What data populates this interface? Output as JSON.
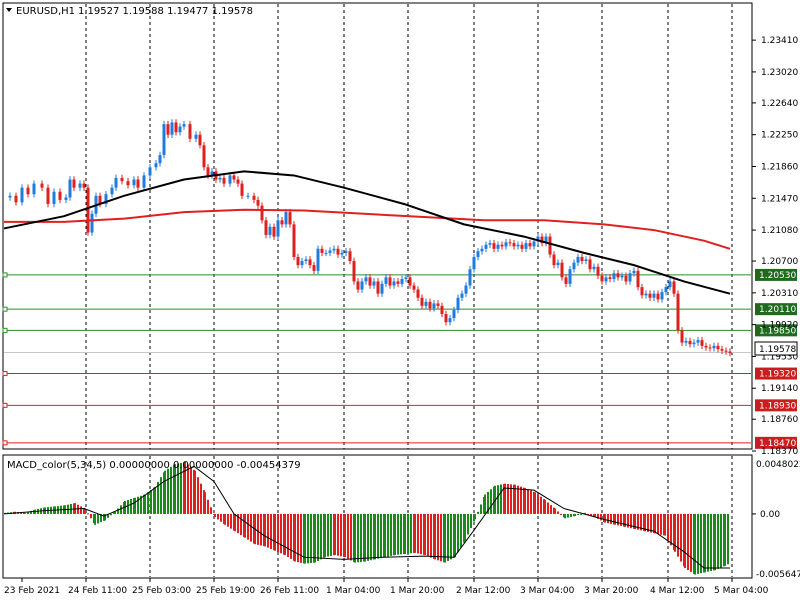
{
  "header": {
    "symbol": "EURUSD,H1",
    "ohlc": "1.19527 1.19588 1.19477 1.19578"
  },
  "macd": {
    "label": "MACD_color(5,34,5) 0.00000000 0.00000000 -0.00454379",
    "ticks": [
      "0.0048022",
      "0.00",
      "-0.005647"
    ]
  },
  "colors": {
    "bull": "#1e7be0",
    "bear": "#e0201e",
    "ma_slow": "#e0201e",
    "ma_fast": "#000000",
    "macd_up": "#1a8a1a",
    "macd_down": "#e0201e",
    "support_line": "#2e8b2e",
    "resist_line": "#e0201e"
  },
  "chart_data": [
    {
      "type": "candlestick",
      "title": "EURUSD,H1",
      "ylim": [
        1.1837,
        1.2362
      ],
      "price_ticks": [
        "1.23410",
        "1.23020",
        "1.22640",
        "1.22250",
        "1.21860",
        "1.21470",
        "1.21080",
        "1.20700",
        "1.20310",
        "1.19920",
        "1.19530",
        "1.19140",
        "1.18760",
        "1.18370"
      ],
      "x_labels": [
        "23 Feb 2021",
        "24 Feb 11:00",
        "25 Feb 03:00",
        "25 Feb 19:00",
        "26 Feb 11:00",
        "1 Mar 04:00",
        "1 Mar 20:00",
        "2 Mar 12:00",
        "3 Mar 04:00",
        "3 Mar 20:00",
        "4 Mar 12:00",
        "5 Mar 04:00"
      ],
      "current_price": "1.19578",
      "horizontal_levels": [
        {
          "label": "1.20530",
          "value": 1.2053,
          "kind": "green"
        },
        {
          "label": "1.20110",
          "value": 1.2011,
          "kind": "green"
        },
        {
          "label": "1.19850",
          "value": 1.1985,
          "kind": "green"
        },
        {
          "label": "1.19320",
          "value": 1.1932,
          "kind": "red"
        },
        {
          "label": "1.18930",
          "value": 1.1893,
          "kind": "red"
        },
        {
          "label": "1.18470",
          "value": 1.1847,
          "kind": "red"
        }
      ],
      "close_path": [
        [
          0,
          1.2148
        ],
        [
          6,
          1.215
        ],
        [
          12,
          1.2142
        ],
        [
          18,
          1.216
        ],
        [
          24,
          1.2152
        ],
        [
          30,
          1.2165
        ],
        [
          38,
          1.216
        ],
        [
          44,
          1.214
        ],
        [
          50,
          1.2155
        ],
        [
          56,
          1.2145
        ],
        [
          62,
          1.2148
        ],
        [
          66,
          1.217
        ],
        [
          70,
          1.216
        ],
        [
          76,
          1.2165
        ],
        [
          80,
          1.216
        ],
        [
          84,
          1.2105
        ],
        [
          88,
          1.2128
        ],
        [
          92,
          1.215
        ],
        [
          96,
          1.214
        ],
        [
          102,
          1.2152
        ],
        [
          108,
          1.216
        ],
        [
          112,
          1.2172
        ],
        [
          118,
          1.2168
        ],
        [
          124,
          1.2163
        ],
        [
          130,
          1.217
        ],
        [
          134,
          1.216
        ],
        [
          140,
          1.2175
        ],
        [
          146,
          1.2185
        ],
        [
          152,
          1.219
        ],
        [
          156,
          1.22
        ],
        [
          160,
          1.2238
        ],
        [
          164,
          1.2225
        ],
        [
          168,
          1.224
        ],
        [
          172,
          1.2228
        ],
        [
          176,
          1.2235
        ],
        [
          180,
          1.2238
        ],
        [
          186,
          1.222
        ],
        [
          192,
          1.2225
        ],
        [
          196,
          1.2212
        ],
        [
          200,
          1.2185
        ],
        [
          204,
          1.2175
        ],
        [
          208,
          1.218
        ],
        [
          212,
          1.217
        ],
        [
          216,
          1.2172
        ],
        [
          220,
          1.2165
        ],
        [
          226,
          1.2175
        ],
        [
          230,
          1.217
        ],
        [
          234,
          1.2165
        ],
        [
          238,
          1.215
        ],
        [
          244,
          1.215
        ],
        [
          250,
          1.2145
        ],
        [
          254,
          1.2138
        ],
        [
          258,
          1.212
        ],
        [
          262,
          1.2102
        ],
        [
          266,
          1.2112
        ],
        [
          270,
          1.21
        ],
        [
          274,
          1.212
        ],
        [
          278,
          1.2115
        ],
        [
          282,
          1.213
        ],
        [
          286,
          1.2115
        ],
        [
          290,
          1.2075
        ],
        [
          294,
          1.2065
        ],
        [
          298,
          1.207
        ],
        [
          302,
          1.2072
        ],
        [
          306,
          1.2065
        ],
        [
          310,
          1.2058
        ],
        [
          314,
          1.2085
        ],
        [
          318,
          1.208
        ],
        [
          322,
          1.208
        ],
        [
          326,
          1.2083
        ],
        [
          330,
          1.2085
        ],
        [
          334,
          1.2078
        ],
        [
          338,
          1.208
        ],
        [
          342,
          1.2082
        ],
        [
          346,
          1.207
        ],
        [
          350,
          1.2045
        ],
        [
          354,
          1.2035
        ],
        [
          358,
          1.2045
        ],
        [
          362,
          1.205
        ],
        [
          366,
          1.204
        ],
        [
          370,
          1.2045
        ],
        [
          374,
          1.203
        ],
        [
          378,
          1.2042
        ],
        [
          382,
          1.205
        ],
        [
          386,
          1.204
        ],
        [
          390,
          1.2045
        ],
        [
          394,
          1.2042
        ],
        [
          398,
          1.2048
        ],
        [
          402,
          1.205
        ],
        [
          406,
          1.204
        ],
        [
          410,
          1.2035
        ],
        [
          414,
          1.2025
        ],
        [
          418,
          1.2015
        ],
        [
          422,
          1.202
        ],
        [
          426,
          1.2012
        ],
        [
          430,
          1.2018
        ],
        [
          434,
          1.2015
        ],
        [
          438,
          1.2005
        ],
        [
          442,
          1.1995
        ],
        [
          446,
          1.2
        ],
        [
          450,
          1.201
        ],
        [
          454,
          1.2025
        ],
        [
          458,
          1.203
        ],
        [
          462,
          1.204
        ],
        [
          466,
          1.206
        ],
        [
          470,
          1.2075
        ],
        [
          474,
          1.2082
        ],
        [
          478,
          1.2085
        ],
        [
          482,
          1.209
        ],
        [
          486,
          1.2092
        ],
        [
          490,
          1.2085
        ],
        [
          494,
          1.209
        ],
        [
          498,
          1.2088
        ],
        [
          502,
          1.2093
        ],
        [
          506,
          1.2092
        ],
        [
          510,
          1.2088
        ],
        [
          514,
          1.209
        ],
        [
          518,
          1.2085
        ],
        [
          522,
          1.2092
        ],
        [
          526,
          1.2088
        ],
        [
          530,
          1.2094
        ],
        [
          534,
          1.21
        ],
        [
          538,
          1.2092
        ],
        [
          542,
          1.21
        ],
        [
          546,
          1.2078
        ],
        [
          550,
          1.2065
        ],
        [
          554,
          1.2068
        ],
        [
          558,
          1.205
        ],
        [
          562,
          1.2042
        ],
        [
          566,
          1.206
        ],
        [
          570,
          1.2068
        ],
        [
          574,
          1.2075
        ],
        [
          578,
          1.207
        ],
        [
          582,
          1.2072
        ],
        [
          586,
          1.206
        ],
        [
          590,
          1.2063
        ],
        [
          594,
          1.2052
        ],
        [
          598,
          1.2045
        ],
        [
          602,
          1.205
        ],
        [
          606,
          1.2048
        ],
        [
          610,
          1.2055
        ],
        [
          614,
          1.205
        ],
        [
          618,
          1.2052
        ],
        [
          622,
          1.2045
        ],
        [
          626,
          1.2055
        ],
        [
          630,
          1.2058
        ],
        [
          634,
          1.2038
        ],
        [
          638,
          1.2028
        ],
        [
          642,
          1.203
        ],
        [
          646,
          1.2025
        ],
        [
          650,
          1.203
        ],
        [
          654,
          1.2023
        ],
        [
          658,
          1.2032
        ],
        [
          662,
          1.2038
        ],
        [
          666,
          1.2045
        ],
        [
          670,
          1.203
        ],
        [
          674,
          1.1985
        ],
        [
          678,
          1.197
        ],
        [
          682,
          1.1972
        ],
        [
          686,
          1.1968
        ],
        [
          690,
          1.197
        ],
        [
          694,
          1.1973
        ],
        [
          698,
          1.1966
        ],
        [
          702,
          1.1964
        ],
        [
          706,
          1.1963
        ],
        [
          710,
          1.1966
        ],
        [
          714,
          1.1962
        ],
        [
          718,
          1.196
        ],
        [
          722,
          1.1959
        ],
        [
          726,
          1.1957
        ]
      ],
      "ma_fast": [
        [
          0,
          1.211
        ],
        [
          60,
          1.2125
        ],
        [
          120,
          1.215
        ],
        [
          180,
          1.217
        ],
        [
          240,
          1.218
        ],
        [
          290,
          1.2175
        ],
        [
          340,
          1.216
        ],
        [
          400,
          1.214
        ],
        [
          460,
          1.2115
        ],
        [
          520,
          1.21
        ],
        [
          580,
          1.208
        ],
        [
          630,
          1.2065
        ],
        [
          680,
          1.2045
        ],
        [
          726,
          1.203
        ]
      ],
      "ma_slow": [
        [
          0,
          1.2118
        ],
        [
          60,
          1.2118
        ],
        [
          120,
          1.2122
        ],
        [
          180,
          1.213
        ],
        [
          240,
          1.2133
        ],
        [
          300,
          1.2132
        ],
        [
          360,
          1.2128
        ],
        [
          420,
          1.2124
        ],
        [
          480,
          1.212
        ],
        [
          540,
          1.212
        ],
        [
          600,
          1.2115
        ],
        [
          650,
          1.2108
        ],
        [
          700,
          1.2095
        ],
        [
          726,
          1.2085
        ]
      ],
      "macd_hist": [
        [
          0,
          0.0001
        ],
        [
          10,
          0.0002
        ],
        [
          20,
          0.0001
        ],
        [
          30,
          0.0004
        ],
        [
          40,
          0.0006
        ],
        [
          50,
          0.0007
        ],
        [
          60,
          0.0008
        ],
        [
          70,
          0.001
        ],
        [
          80,
          0.0005
        ],
        [
          90,
          -0.001
        ],
        [
          100,
          -0.0006
        ],
        [
          110,
          0.0002
        ],
        [
          120,
          0.0012
        ],
        [
          130,
          0.0015
        ],
        [
          140,
          0.0018
        ],
        [
          150,
          0.0025
        ],
        [
          160,
          0.004
        ],
        [
          170,
          0.0046
        ],
        [
          180,
          0.0048
        ],
        [
          190,
          0.004
        ],
        [
          200,
          0.002
        ],
        [
          210,
          -0.0003
        ],
        [
          220,
          -0.001
        ],
        [
          230,
          -0.0016
        ],
        [
          240,
          -0.0022
        ],
        [
          250,
          -0.0028
        ],
        [
          260,
          -0.003
        ],
        [
          270,
          -0.0034
        ],
        [
          280,
          -0.0038
        ],
        [
          290,
          -0.0044
        ],
        [
          300,
          -0.0046
        ],
        [
          310,
          -0.0045
        ],
        [
          320,
          -0.004
        ],
        [
          330,
          -0.0038
        ],
        [
          340,
          -0.004
        ],
        [
          350,
          -0.0045
        ],
        [
          360,
          -0.0044
        ],
        [
          370,
          -0.0042
        ],
        [
          380,
          -0.004
        ],
        [
          390,
          -0.0038
        ],
        [
          400,
          -0.0037
        ],
        [
          410,
          -0.0036
        ],
        [
          420,
          -0.0038
        ],
        [
          430,
          -0.0042
        ],
        [
          440,
          -0.0045
        ],
        [
          450,
          -0.004
        ],
        [
          460,
          -0.0025
        ],
        [
          470,
          -0.0005
        ],
        [
          480,
          0.0018
        ],
        [
          490,
          0.0026
        ],
        [
          500,
          0.0028
        ],
        [
          510,
          0.0027
        ],
        [
          520,
          0.0024
        ],
        [
          530,
          0.002
        ],
        [
          540,
          0.0013
        ],
        [
          550,
          0.0005
        ],
        [
          560,
          -0.0004
        ],
        [
          570,
          -0.0002
        ],
        [
          580,
          0.0001
        ],
        [
          590,
          -0.0003
        ],
        [
          600,
          -0.0008
        ],
        [
          610,
          -0.001
        ],
        [
          620,
          -0.0012
        ],
        [
          630,
          -0.0014
        ],
        [
          640,
          -0.0016
        ],
        [
          650,
          -0.0018
        ],
        [
          660,
          -0.002
        ],
        [
          670,
          -0.0035
        ],
        [
          680,
          -0.005
        ],
        [
          690,
          -0.0056
        ],
        [
          700,
          -0.0054
        ],
        [
          710,
          -0.0052
        ],
        [
          720,
          -0.0048
        ],
        [
          726,
          -0.0045
        ]
      ],
      "macd_signal": [
        [
          0,
          0.0
        ],
        [
          40,
          0.0003
        ],
        [
          80,
          0.0005
        ],
        [
          100,
          -0.0002
        ],
        [
          130,
          0.001
        ],
        [
          160,
          0.003
        ],
        [
          190,
          0.0044
        ],
        [
          210,
          0.003
        ],
        [
          230,
          0.0
        ],
        [
          260,
          -0.002
        ],
        [
          300,
          -0.004
        ],
        [
          340,
          -0.0042
        ],
        [
          380,
          -0.004
        ],
        [
          420,
          -0.0039
        ],
        [
          450,
          -0.004
        ],
        [
          470,
          -0.0015
        ],
        [
          500,
          0.0024
        ],
        [
          530,
          0.0022
        ],
        [
          560,
          0.0005
        ],
        [
          600,
          -0.0005
        ],
        [
          650,
          -0.0016
        ],
        [
          680,
          -0.0035
        ],
        [
          700,
          -0.005
        ],
        [
          726,
          -0.005
        ]
      ]
    }
  ]
}
